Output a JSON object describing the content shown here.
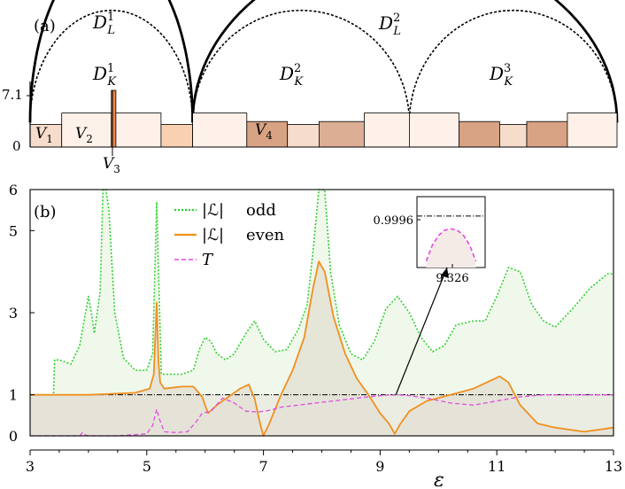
{
  "chart_data": [
    {
      "panel": "(a)",
      "type": "bar",
      "y_ticks": [
        "7.1",
        "0"
      ],
      "bar_labels": [
        {
          "text": "V",
          "sub": "1"
        },
        {
          "text": "V",
          "sub": "2"
        },
        {
          "text": "V",
          "sub": "3"
        },
        {
          "text": "V",
          "sub": "4"
        }
      ],
      "barriers": [
        {
          "x0": 0.0,
          "x1": 0.35,
          "h": 1.6,
          "color": "#f6dccb"
        },
        {
          "x0": 0.35,
          "x1": 0.9,
          "h": 2.4,
          "color": "#fdf1ea"
        },
        {
          "x0": 0.9,
          "x1": 0.95,
          "h": 4.0,
          "color": "#e8874a"
        },
        {
          "x0": 0.95,
          "x1": 1.45,
          "h": 2.4,
          "color": "#fdf1ea"
        },
        {
          "x0": 1.45,
          "x1": 1.8,
          "h": 1.6,
          "color": "#f8d1b3"
        },
        {
          "x0": 1.8,
          "x1": 2.4,
          "h": 2.4,
          "color": "#fdf1ea"
        },
        {
          "x0": 2.4,
          "x1": 2.85,
          "h": 1.8,
          "color": "#d8a384"
        },
        {
          "x0": 2.85,
          "x1": 3.2,
          "h": 1.6,
          "color": "#f6dccb"
        },
        {
          "x0": 3.2,
          "x1": 3.7,
          "h": 1.8,
          "color": "#dcae94"
        },
        {
          "x0": 3.7,
          "x1": 4.2,
          "h": 2.4,
          "color": "#fdf1ea"
        },
        {
          "x0": 4.2,
          "x1": 4.75,
          "h": 2.4,
          "color": "#fdf1ea"
        },
        {
          "x0": 4.75,
          "x1": 5.2,
          "h": 1.8,
          "color": "#d8a384"
        },
        {
          "x0": 5.2,
          "x1": 5.5,
          "h": 1.6,
          "color": "#f6dccb"
        },
        {
          "x0": 5.5,
          "x1": 5.95,
          "h": 1.8,
          "color": "#d8a384"
        },
        {
          "x0": 5.95,
          "x1": 6.5,
          "h": 2.4,
          "color": "#fdf1ea"
        }
      ],
      "arcs": [
        {
          "label": "D",
          "sup": "1",
          "sub": "L",
          "x0": 0.0,
          "x1": 1.8,
          "h": 5.6,
          "style": "solid"
        },
        {
          "label": "D",
          "sup": "2",
          "sub": "L",
          "x0": 1.8,
          "x1": 6.5,
          "h": 5.6,
          "style": "solid"
        },
        {
          "label": "D",
          "sup": "1",
          "sub": "K",
          "x0": 0.0,
          "x1": 1.8,
          "h": 3.6,
          "style": "dotted"
        },
        {
          "label": "D",
          "sup": "2",
          "sub": "K",
          "x0": 1.8,
          "x1": 4.2,
          "h": 3.6,
          "style": "dotted"
        },
        {
          "label": "D",
          "sup": "3",
          "sub": "K",
          "x0": 4.2,
          "x1": 6.5,
          "h": 3.6,
          "style": "dotted"
        }
      ]
    },
    {
      "panel": "(b)",
      "type": "line",
      "xlabel": "ε",
      "xlim": [
        3,
        13
      ],
      "ylim": [
        0,
        6
      ],
      "x_ticks": [
        "3",
        "5",
        "7",
        "9",
        "11",
        "13"
      ],
      "y_ticks": [
        "0",
        "1",
        "3",
        "5",
        "6"
      ],
      "y_tick_values": [
        0,
        1,
        3,
        5,
        6
      ],
      "reference_line_y": 1,
      "legend": [
        {
          "symbol": "|ℒ|",
          "label": "odd",
          "color": "#2fd12f",
          "style": "dotted"
        },
        {
          "symbol": "|ℒ|",
          "label": "even",
          "color": "#f0901e",
          "style": "solid"
        },
        {
          "symbol": "T",
          "label": "",
          "color": "#e04be0",
          "style": "dashed"
        }
      ],
      "series": [
        {
          "name": "|ℒ| odd",
          "color": "#2fd12f",
          "x": [
            3.0,
            3.4,
            3.42,
            3.5,
            3.7,
            3.85,
            3.95,
            4.0,
            4.05,
            4.1,
            4.2,
            4.25,
            4.3,
            4.35,
            4.45,
            4.6,
            4.8,
            5.0,
            5.1,
            5.17,
            5.2,
            5.25,
            5.4,
            5.6,
            5.8,
            5.9,
            6.0,
            6.1,
            6.2,
            6.35,
            6.5,
            6.7,
            6.85,
            7.0,
            7.2,
            7.4,
            7.6,
            7.75,
            7.85,
            7.95,
            8.05,
            8.15,
            8.3,
            8.5,
            8.7,
            8.9,
            9.1,
            9.3,
            9.5,
            9.7,
            9.9,
            10.1,
            10.3,
            10.6,
            10.8,
            11.0,
            11.2,
            11.4,
            11.6,
            11.8,
            12.0,
            12.3,
            12.6,
            12.9,
            13.0
          ],
          "y": [
            1.0,
            1.0,
            1.85,
            1.85,
            1.75,
            2.2,
            3.0,
            3.4,
            3.0,
            2.5,
            3.5,
            6.0,
            6.0,
            5.5,
            3.0,
            1.9,
            1.6,
            1.6,
            2.0,
            5.7,
            4.0,
            1.5,
            1.5,
            1.5,
            1.6,
            2.1,
            2.4,
            2.3,
            2.0,
            1.85,
            2.0,
            2.5,
            2.8,
            2.35,
            2.05,
            2.1,
            2.6,
            3.2,
            4.5,
            6.0,
            6.0,
            4.0,
            2.7,
            2.0,
            1.85,
            2.3,
            3.1,
            3.4,
            3.0,
            2.4,
            2.05,
            2.2,
            2.7,
            2.8,
            2.8,
            3.4,
            4.1,
            4.0,
            3.2,
            2.8,
            2.65,
            3.1,
            3.6,
            3.95,
            3.95
          ]
        },
        {
          "name": "|ℒ| even",
          "color": "#f0901e",
          "x": [
            3.0,
            4.0,
            4.8,
            5.05,
            5.12,
            5.17,
            5.2,
            5.23,
            5.3,
            5.6,
            5.8,
            5.95,
            6.05,
            6.2,
            6.4,
            6.6,
            6.75,
            6.85,
            6.95,
            7.0,
            7.1,
            7.3,
            7.5,
            7.7,
            7.85,
            7.95,
            8.05,
            8.2,
            8.4,
            8.6,
            8.8,
            9.0,
            9.15,
            9.25,
            9.35,
            9.5,
            9.8,
            10.2,
            10.6,
            10.9,
            11.05,
            11.2,
            11.4,
            11.7,
            12.0,
            12.5,
            13.0
          ],
          "y": [
            1.0,
            1.0,
            1.05,
            1.15,
            1.5,
            3.25,
            1.8,
            1.3,
            1.15,
            1.2,
            1.2,
            0.95,
            0.55,
            0.75,
            0.95,
            1.15,
            1.25,
            0.9,
            0.25,
            0.0,
            0.3,
            1.0,
            1.6,
            2.4,
            3.6,
            4.25,
            4.0,
            2.9,
            2.0,
            1.4,
            1.0,
            0.55,
            0.3,
            0.05,
            0.3,
            0.6,
            0.85,
            1.0,
            1.15,
            1.35,
            1.45,
            1.3,
            0.75,
            0.3,
            0.2,
            0.1,
            0.2
          ]
        },
        {
          "name": "T",
          "color": "#e04be0",
          "x": [
            3.0,
            3.85,
            3.9,
            3.95,
            4.0,
            4.5,
            5.0,
            5.1,
            5.17,
            5.22,
            5.3,
            5.5,
            5.7,
            5.85,
            5.95,
            6.1,
            6.3,
            6.5,
            6.7,
            6.9,
            7.1,
            7.3,
            7.6,
            7.9,
            8.2,
            8.5,
            8.8,
            9.1,
            9.326,
            9.5,
            9.8,
            10.2,
            10.6,
            11.0,
            11.4,
            11.8,
            12.0,
            12.5,
            13.0
          ],
          "y": [
            0.0,
            0.0,
            0.08,
            0.02,
            0.0,
            0.0,
            0.05,
            0.25,
            0.65,
            0.4,
            0.1,
            0.08,
            0.1,
            0.35,
            0.55,
            0.6,
            0.92,
            0.8,
            0.6,
            0.58,
            0.62,
            0.7,
            0.75,
            0.8,
            0.85,
            0.9,
            0.95,
            0.99,
            1.0,
            0.98,
            0.92,
            0.8,
            0.75,
            0.85,
            0.95,
            1.0,
            1.0,
            1.0,
            1.0
          ]
        }
      ],
      "inset": {
        "y_tick": "0.9996",
        "x_tick": "9.326",
        "xlim": [
          9.315,
          9.337
        ],
        "ylim": [
          0.9992,
          1.0003
        ],
        "reference_y": 1.0,
        "x": [
          9.318,
          9.32,
          9.322,
          9.324,
          9.326,
          9.328,
          9.33,
          9.332,
          9.334
        ],
        "y": [
          0.9993,
          0.99955,
          0.9997,
          0.99978,
          0.9998,
          0.99978,
          0.9997,
          0.99955,
          0.9993
        ]
      }
    }
  ]
}
